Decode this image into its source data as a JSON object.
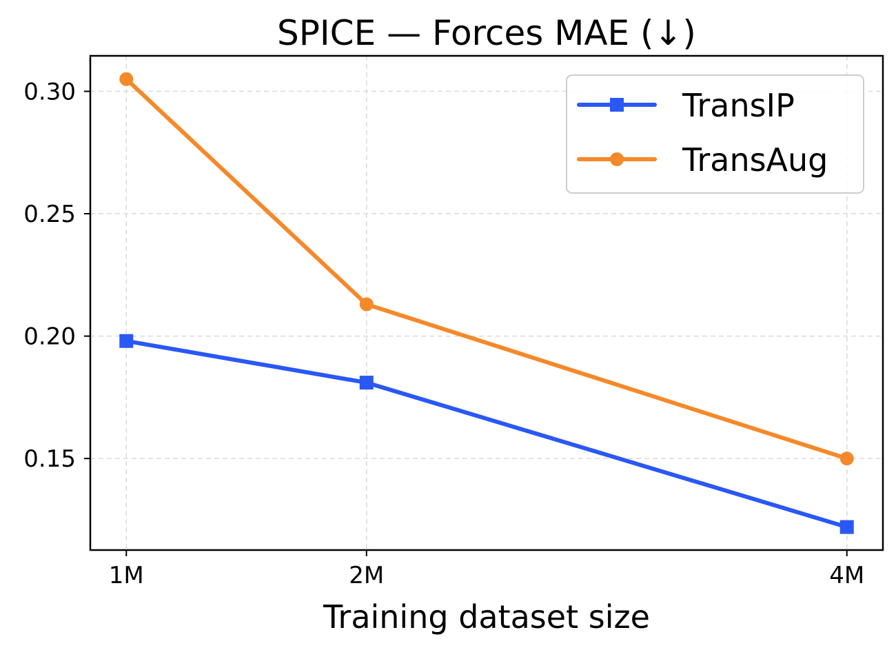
{
  "chart_data": {
    "type": "line",
    "title": "SPICE — Forces MAE (↓)",
    "xlabel": "Training dataset size",
    "ylabel": "",
    "x": [
      1,
      2,
      4
    ],
    "categories": [
      "1M",
      "2M",
      "4M"
    ],
    "xlim": [
      0.85,
      4.15
    ],
    "ylim": [
      0.1126,
      0.3145
    ],
    "yticks": [
      0.15,
      0.2,
      0.25,
      0.3
    ],
    "ytick_labels": [
      "0.15",
      "0.20",
      "0.25",
      "0.30"
    ],
    "grid": true,
    "legend_position": "top-right",
    "series": [
      {
        "name": "TransIP",
        "marker": "square",
        "color": "#2a58f5",
        "values": [
          0.198,
          0.181,
          0.122
        ]
      },
      {
        "name": "TransAug",
        "marker": "circle",
        "color": "#f5892a",
        "values": [
          0.305,
          0.213,
          0.15
        ]
      }
    ]
  }
}
